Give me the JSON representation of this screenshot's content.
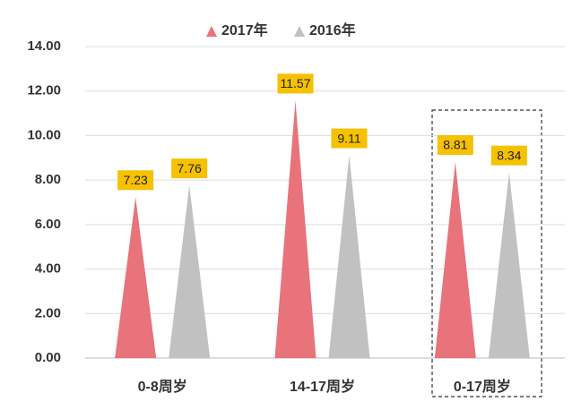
{
  "chart_data": {
    "type": "bar",
    "categories": [
      "0-8周岁",
      "14-17周岁",
      "0-17周岁"
    ],
    "series": [
      {
        "name": "2017年",
        "color": "#e8737b",
        "values": [
          7.23,
          11.57,
          8.81
        ]
      },
      {
        "name": "2016年",
        "color": "#c2c1c2",
        "values": [
          7.76,
          9.11,
          8.34
        ]
      }
    ],
    "ylim": [
      0,
      14
    ],
    "yticks": [
      {
        "value": 0,
        "label": "0.00"
      },
      {
        "value": 2,
        "label": "2.00"
      },
      {
        "value": 4,
        "label": "4.00"
      },
      {
        "value": 6,
        "label": "6.00"
      },
      {
        "value": 8,
        "label": "8.00"
      },
      {
        "value": 10,
        "label": "10.00"
      },
      {
        "value": 12,
        "label": "12.00"
      },
      {
        "value": 14,
        "label": "14.00"
      }
    ],
    "grid": true,
    "label_color": "#f5c100"
  }
}
